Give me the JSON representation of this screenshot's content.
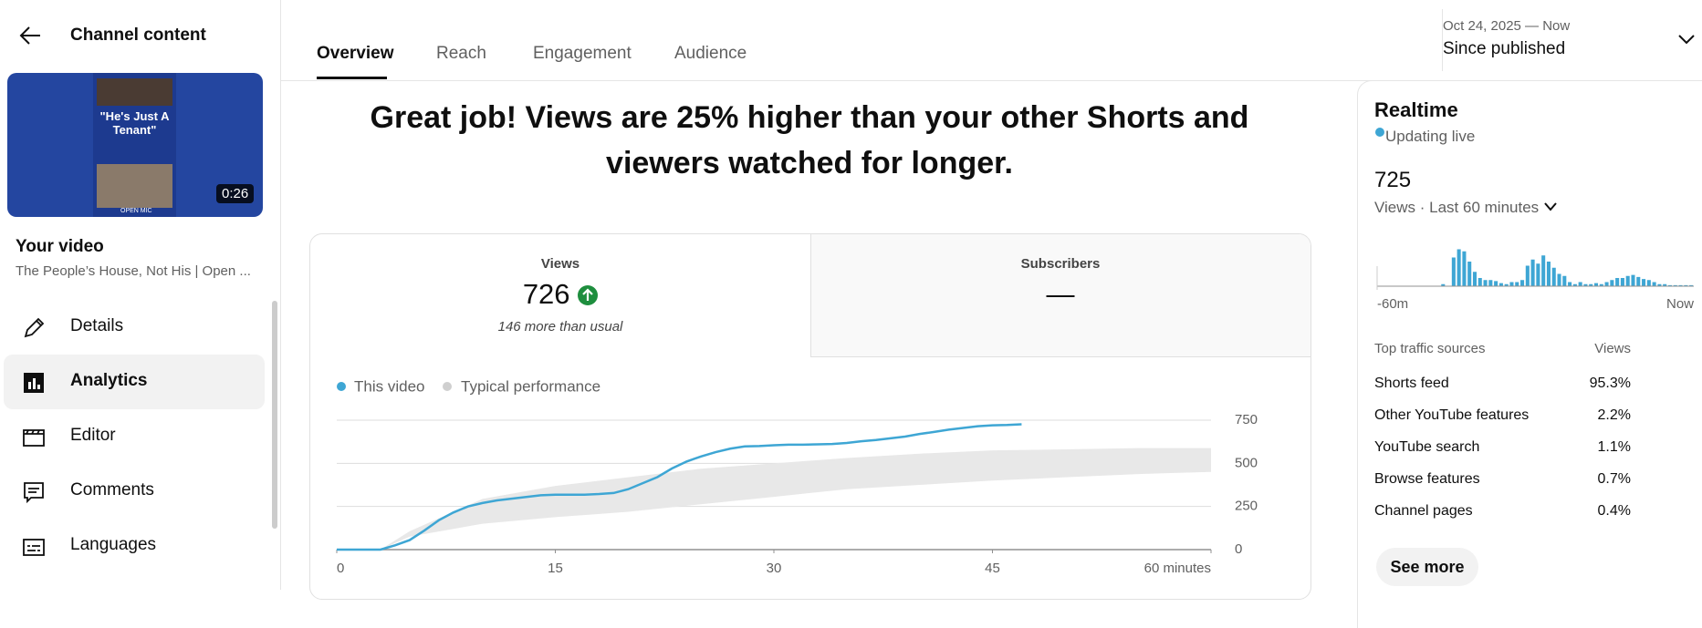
{
  "sidebar": {
    "title": "Channel content",
    "thumbnail": {
      "overlay_text": "\"He's Just A Tenant\"",
      "badge": "OPEN MIC",
      "duration": "0:26"
    },
    "video_label": "Your video",
    "video_title": "The People’s House, Not His | Open ...",
    "menu": [
      "Details",
      "Analytics",
      "Editor",
      "Comments",
      "Languages"
    ]
  },
  "tabs": [
    "Overview",
    "Reach",
    "Engagement",
    "Audience"
  ],
  "date_range": {
    "range": "Oct 24, 2025 — Now",
    "label": "Since published"
  },
  "headline": "Great job! Views are 25% higher than your other Shorts and viewers watched for longer.",
  "metrics": [
    {
      "label": "Views",
      "value": "726",
      "note": "146 more than usual"
    },
    {
      "label": "Subscribers",
      "value": "—"
    }
  ],
  "chart_data": [
    {
      "type": "line",
      "x": [
        0,
        1,
        2,
        3,
        4,
        5,
        6,
        7,
        8,
        9,
        10,
        11,
        12,
        13,
        14,
        15,
        16,
        17,
        18,
        19,
        20,
        21,
        22,
        23,
        24,
        25,
        26,
        27,
        28,
        29,
        30,
        31,
        32,
        33,
        34,
        35,
        36,
        37,
        38,
        39,
        40,
        41,
        42,
        43,
        44,
        45,
        46,
        47
      ],
      "series": [
        {
          "name": "This video",
          "color": "#3ea6d4",
          "values": [
            0,
            0,
            0,
            0,
            25,
            55,
            110,
            170,
            215,
            250,
            270,
            285,
            295,
            305,
            315,
            318,
            318,
            318,
            322,
            328,
            350,
            385,
            420,
            470,
            510,
            540,
            565,
            585,
            598,
            600,
            605,
            608,
            608,
            610,
            612,
            618,
            628,
            635,
            645,
            655,
            670,
            682,
            695,
            705,
            715,
            720,
            722,
            726
          ]
        }
      ],
      "band": {
        "name": "Typical performance",
        "color": "#e8e8e8",
        "x": [
          3,
          5,
          10,
          15,
          20,
          25,
          30,
          35,
          40,
          45,
          50,
          55,
          60
        ],
        "low": [
          0,
          75,
          150,
          188,
          219,
          263,
          306,
          350,
          375,
          400,
          419,
          438,
          450
        ],
        "high": [
          0,
          106,
          294,
          369,
          419,
          469,
          500,
          531,
          556,
          575,
          581,
          588,
          588
        ]
      },
      "xlim": [
        0,
        60
      ],
      "xticks": [
        0,
        15,
        30,
        45,
        {
          "value": 60,
          "label": "60 minutes"
        }
      ],
      "ylim": [
        0,
        750
      ],
      "yticks": [
        0,
        250,
        500,
        750
      ],
      "grid": true
    },
    {
      "type": "bar",
      "color": "#3ea6d4",
      "values": [
        0,
        0,
        0,
        0,
        0,
        0,
        0,
        0,
        0,
        0,
        0,
        0,
        2,
        0,
        28,
        36,
        34,
        24,
        14,
        8,
        6,
        6,
        5,
        3,
        2,
        4,
        4,
        6,
        20,
        26,
        22,
        30,
        24,
        18,
        12,
        10,
        4,
        2,
        4,
        2,
        2,
        3,
        2,
        4,
        6,
        8,
        8,
        10,
        11,
        9,
        7,
        6,
        4,
        2,
        2,
        1,
        1,
        1,
        1,
        1
      ],
      "ylim": [
        0,
        40
      ],
      "x_labels": [
        "-60m",
        "Now"
      ]
    }
  ],
  "realtime": {
    "title": "Realtime",
    "status": "Updating live",
    "value": "725",
    "metric": "Views · Last 60 minutes",
    "traffic": {
      "header": [
        "Top traffic sources",
        "Views"
      ],
      "rows": [
        [
          "Shorts feed",
          "95.3%"
        ],
        [
          "Other YouTube features",
          "2.2%"
        ],
        [
          "YouTube search",
          "1.1%"
        ],
        [
          "Browse features",
          "0.7%"
        ],
        [
          "Channel pages",
          "0.4%"
        ]
      ]
    },
    "button": "See more"
  }
}
